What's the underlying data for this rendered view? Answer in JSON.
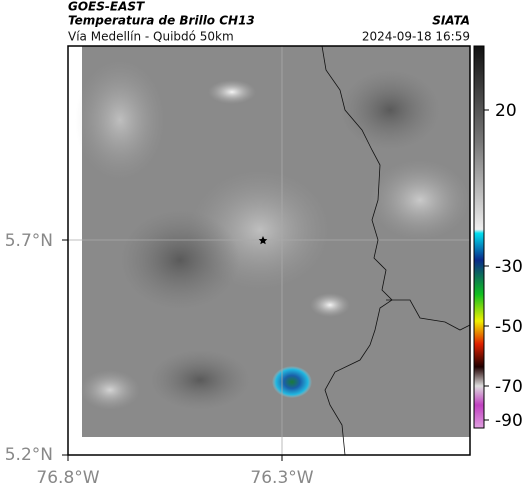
{
  "header": {
    "source": "GOES-EAST",
    "title": "Temperatura de Brillo CH13",
    "subtitle": "Vía Medellín - Quibdó 50km",
    "agency": "SIATA",
    "timestamp": "2024-09-18 16:59"
  },
  "map": {
    "lon_labels": [
      "76.8°W",
      "76.3°W"
    ],
    "lat_labels": [
      "5.7°N",
      "5.2°N"
    ]
  },
  "colorbar": {
    "tick_labels": [
      "20",
      "-30",
      "-50",
      "-70",
      "-90"
    ]
  }
}
